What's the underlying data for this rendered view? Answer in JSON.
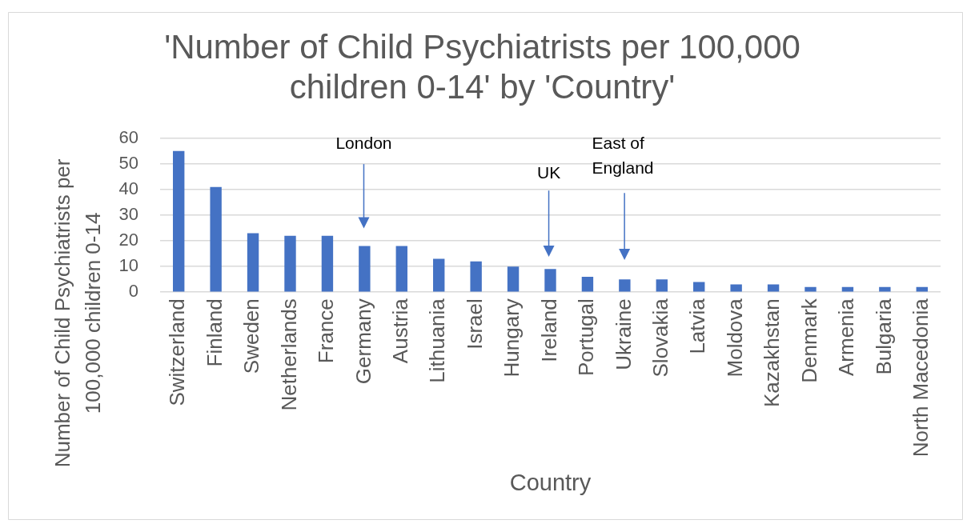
{
  "chart_data": {
    "type": "bar",
    "title": "'Number of Child Psychiatrists per 100,000 children 0-14' by 'Country'",
    "xlabel": "Country",
    "ylabel": "Number of Child Psychiatrists per 100,000 children 0-14",
    "categories": [
      "Switzerland",
      "Finland",
      "Sweden",
      "Netherlands",
      "France",
      "Germany",
      "Austria",
      "Lithuania",
      "Israel",
      "Hungary",
      "Ireland",
      "Portugal",
      "Ukraine",
      "Slovakia",
      "Latvia",
      "Moldova",
      "Kazakhstan",
      "Denmark",
      "Armenia",
      "Bulgaria",
      "North Macedonia"
    ],
    "values": [
      55,
      41,
      23,
      22,
      22,
      18,
      18,
      13,
      12,
      10,
      9,
      6,
      5,
      5,
      4,
      3,
      3,
      2,
      2,
      2,
      2
    ],
    "color": "#4472c4",
    "ylim": [
      0,
      60
    ],
    "yticks": [
      0,
      10,
      20,
      30,
      40,
      50,
      60
    ],
    "grid": "y",
    "annotations": [
      "London",
      "UK",
      "East of England"
    ]
  }
}
